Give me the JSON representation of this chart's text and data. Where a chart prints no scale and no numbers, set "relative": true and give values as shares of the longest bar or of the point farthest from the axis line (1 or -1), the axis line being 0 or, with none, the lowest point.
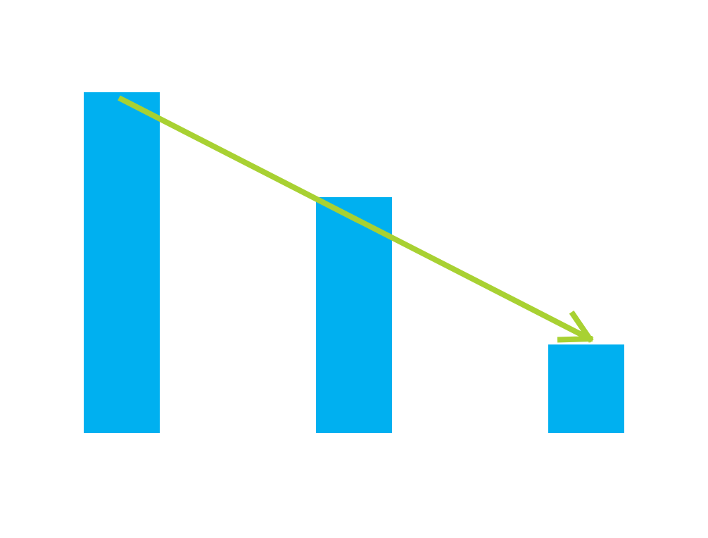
{
  "chart_data": {
    "type": "bar",
    "relative": true,
    "categories": [
      null,
      null,
      null
    ],
    "color": "#00b0f0",
    "values": [
      1,
      0.692,
      0.26
    ]
  }
}
